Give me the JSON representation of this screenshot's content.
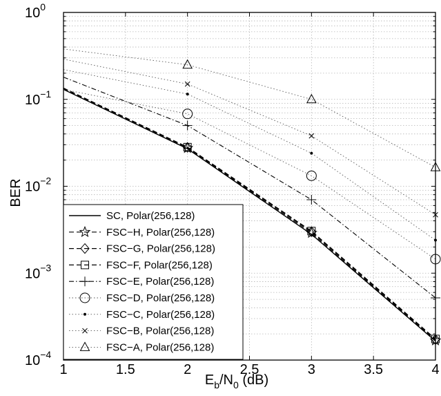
{
  "chart_data": {
    "type": "line",
    "x_scale": "linear",
    "y_scale": "log",
    "xlim": [
      1,
      4
    ],
    "ylim": [
      0.0001,
      1
    ],
    "grid": true,
    "legend_placement": "bottom-left",
    "x_ticks": [
      "1",
      "1.5",
      "2",
      "2.5",
      "3",
      "3.5",
      "4"
    ],
    "y_ticks": [
      {
        "base": "10",
        "exp": "0"
      },
      {
        "base": "10",
        "exp": "−1"
      },
      {
        "base": "10",
        "exp": "−2"
      },
      {
        "base": "10",
        "exp": "−3"
      },
      {
        "base": "10",
        "exp": "−4"
      }
    ],
    "xlabel": {
      "main": "E",
      "sub1": "b",
      "mid": "/N",
      "sub2": "0",
      "tail": " (dB)"
    },
    "ylabel": "BER",
    "series": [
      {
        "name": "SC, Polar(256,128)",
        "line": "solid",
        "marker": "none",
        "color": "#000000",
        "x": [
          1,
          2,
          3,
          4
        ],
        "y": [
          0.13,
          0.027,
          0.0028,
          0.000165
        ]
      },
      {
        "name": "FSC−H, Polar(256,128)",
        "line": "dashed",
        "marker": "star",
        "color": "#000000",
        "x": [
          1,
          2,
          3,
          4
        ],
        "y": [
          0.132,
          0.0275,
          0.0029,
          0.000168
        ]
      },
      {
        "name": "FSC−G, Polar(256,128)",
        "line": "dashed",
        "marker": "diamond",
        "color": "#000000",
        "x": [
          1,
          2,
          3,
          4
        ],
        "y": [
          0.134,
          0.028,
          0.003,
          0.000172
        ]
      },
      {
        "name": "FSC−F, Polar(256,128)",
        "line": "dashed",
        "marker": "square",
        "color": "#000000",
        "x": [
          1,
          2,
          3,
          4
        ],
        "y": [
          0.135,
          0.0282,
          0.00305,
          0.000175
        ]
      },
      {
        "name": "FSC−E, Polar(256,128)",
        "line": "dashdot",
        "marker": "plus",
        "color": "#000000",
        "x": [
          1,
          2,
          3,
          4
        ],
        "y": [
          0.18,
          0.05,
          0.007,
          0.00052
        ]
      },
      {
        "name": "FSC−D, Polar(256,128)",
        "line": "dotted",
        "marker": "circle",
        "color": "#000000",
        "x": [
          1,
          2,
          3,
          4
        ],
        "y": [
          0.13,
          0.068,
          0.0132,
          0.00145
        ]
      },
      {
        "name": "FSC−C, Polar(256,128)",
        "line": "dotted",
        "marker": "dot",
        "color": "#000000",
        "x": [
          1,
          2,
          3,
          4
        ],
        "y": [
          0.22,
          0.115,
          0.024,
          0.0024
        ]
      },
      {
        "name": "FSC−B, Polar(256,128)",
        "line": "dotted",
        "marker": "x",
        "color": "#000000",
        "x": [
          1,
          2,
          3,
          4
        ],
        "y": [
          0.29,
          0.15,
          0.038,
          0.0047
        ]
      },
      {
        "name": "FSC−A, Polar(256,128)",
        "line": "dotted",
        "marker": "triangle",
        "color": "#000000",
        "x": [
          1,
          2,
          3,
          4
        ],
        "y": [
          0.38,
          0.25,
          0.1,
          0.0165
        ]
      }
    ]
  }
}
